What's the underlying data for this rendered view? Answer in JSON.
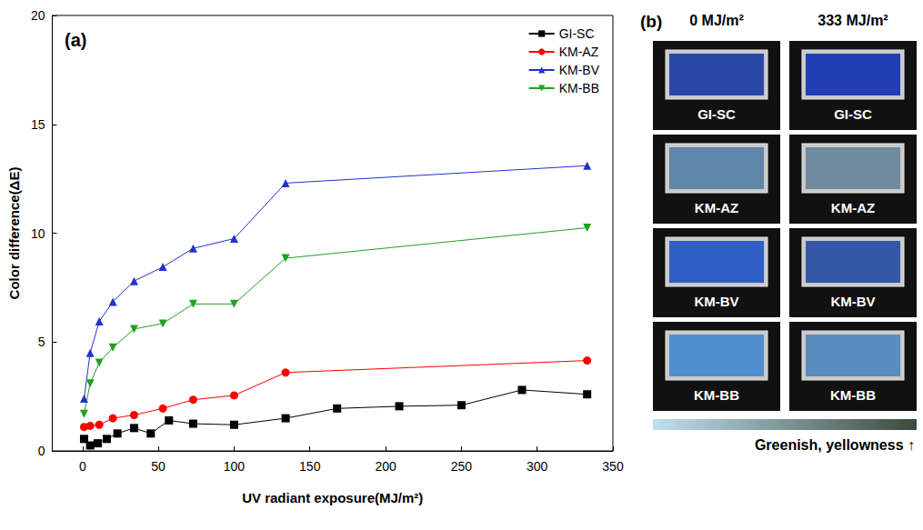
{
  "chart_data": {
    "type": "line",
    "title": "(a)",
    "x_label": "UV radiant exposure(MJ/m²)",
    "y_label": "Color difference(ΔE)",
    "xlim": [
      -20,
      350
    ],
    "xticks": [
      0,
      50,
      100,
      150,
      200,
      250,
      300,
      350
    ],
    "ylim": [
      0,
      20
    ],
    "yticks": [
      0,
      5,
      10,
      15,
      20
    ],
    "grid": false,
    "legend": "upper right",
    "series": [
      {
        "name": "GI-SC",
        "color": "#000000",
        "marker": "square",
        "line_style": "solid",
        "x": [
          1,
          5,
          10,
          16,
          23,
          34,
          45,
          57,
          73,
          100,
          134,
          168,
          209,
          250,
          290,
          333
        ],
        "values": [
          0.55,
          0.25,
          0.35,
          0.55,
          0.8,
          1.05,
          0.8,
          1.4,
          1.25,
          1.2,
          1.5,
          1.95,
          2.05,
          2.1,
          2.8,
          2.6
        ]
      },
      {
        "name": "KM-AZ",
        "color": "#ff0000",
        "marker": "circle",
        "line_style": "solid",
        "x": [
          1,
          5,
          11,
          20,
          34,
          53,
          73,
          100,
          134,
          333
        ],
        "values": [
          1.1,
          1.15,
          1.2,
          1.5,
          1.65,
          1.95,
          2.35,
          2.55,
          3.6,
          4.15
        ]
      },
      {
        "name": "KM-BV",
        "color": "#2233cc",
        "marker": "triangle",
        "line_style": "solid",
        "x": [
          1,
          5,
          11,
          20,
          34,
          53,
          73,
          100,
          134,
          333
        ],
        "values": [
          2.4,
          4.5,
          5.95,
          6.85,
          7.8,
          8.45,
          9.3,
          9.75,
          12.3,
          13.1
        ]
      },
      {
        "name": "KM-BB",
        "color": "#22a022",
        "marker": "triangle_down",
        "line_style": "solid",
        "x": [
          1,
          5,
          11,
          20,
          34,
          53,
          73,
          100,
          134,
          333
        ],
        "values": [
          1.7,
          3.1,
          4.05,
          4.75,
          5.6,
          5.85,
          6.75,
          6.75,
          8.85,
          10.25
        ]
      }
    ]
  },
  "photo_panel": {
    "label": "(b)",
    "columns": [
      "0 MJ/m²",
      "333 MJ/m²"
    ],
    "samples": [
      {
        "name": "GI-SC",
        "colors": [
          "#2a48a6",
          "#1f3fb2"
        ]
      },
      {
        "name": "KM-AZ",
        "colors": [
          "#5f86a8",
          "#6f8b9e"
        ]
      },
      {
        "name": "KM-BV",
        "colors": [
          "#2f5fc2",
          "#3557a8"
        ]
      },
      {
        "name": "KM-BB",
        "colors": [
          "#4f8fd0",
          "#5a8cc0"
        ]
      }
    ],
    "scale_label": "Greenish, yellowness ↑"
  }
}
